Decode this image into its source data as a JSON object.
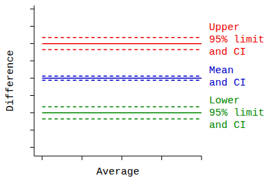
{
  "chart_data": {
    "type": "line",
    "x_label": "Average",
    "y_label": "Difference",
    "x": [
      0,
      4
    ],
    "xlim": [
      -0.2,
      4
    ],
    "xticks": [
      0,
      1,
      2,
      3,
      4
    ],
    "ylim": [
      -4.5,
      4.2
    ],
    "yticks": [
      -4,
      -3,
      -2,
      -1,
      0,
      1,
      2,
      3,
      4
    ],
    "tick_labels": false,
    "grid": false,
    "series": [
      {
        "color": "#ee0000",
        "line_style": "dashed",
        "values": [
          2.35,
          2.35
        ]
      },
      {
        "color": "#ee0000",
        "line_style": "solid",
        "values": [
          2,
          2
        ]
      },
      {
        "color": "#ee0000",
        "line_style": "dashed",
        "values": [
          1.65,
          1.65
        ]
      },
      {
        "color": "#0000c8",
        "line_style": "dashed",
        "values": [
          0.12,
          0.12
        ]
      },
      {
        "color": "#0000c8",
        "line_style": "solid",
        "values": [
          0,
          0
        ]
      },
      {
        "color": "#0000c8",
        "line_style": "dashed",
        "values": [
          -0.12,
          -0.12
        ]
      },
      {
        "color": "#008800",
        "line_style": "dashed",
        "values": [
          -1.65,
          -1.65
        ]
      },
      {
        "color": "#008800",
        "line_style": "solid",
        "values": [
          -2,
          -2
        ]
      },
      {
        "color": "#008800",
        "line_style": "dashed",
        "values": [
          -2.35,
          -2.35
        ]
      }
    ],
    "annotations": [
      {
        "text": [
          "Upper",
          "95% limit",
          "and CI"
        ],
        "color": "#ee0000"
      },
      {
        "text": [
          "Mean",
          "and CI"
        ],
        "color": "#0000c8"
      },
      {
        "text": [
          "Lower",
          "95% limit",
          "and CI"
        ],
        "color": "#008800"
      }
    ]
  }
}
